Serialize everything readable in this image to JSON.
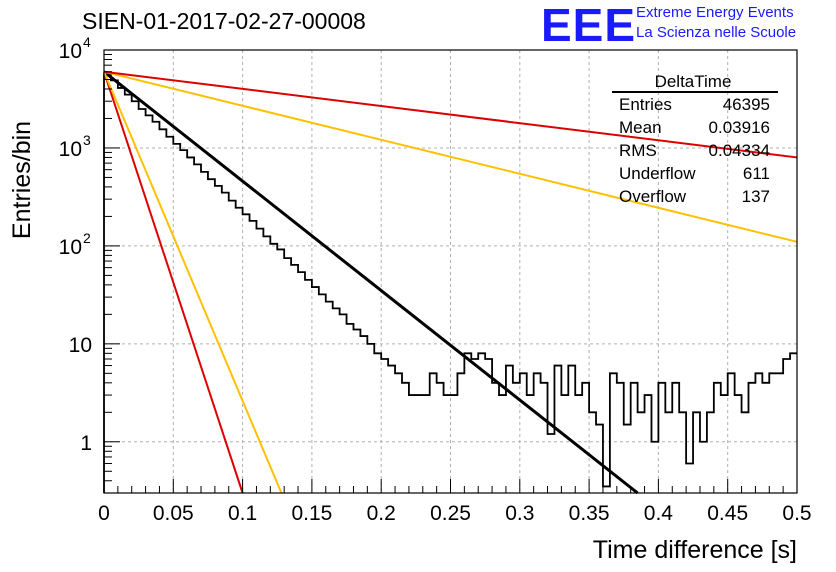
{
  "header": {
    "title": "SIEN-01-2017-02-27-00008",
    "logo_text": "EEE",
    "logo_line1": "Extreme Energy Events",
    "logo_line2": "La Scienza nelle Scuole"
  },
  "stats_box": {
    "name": "DeltaTime",
    "rows": [
      {
        "label": "Entries",
        "value": "46395"
      },
      {
        "label": "Mean",
        "value": "0.03916"
      },
      {
        "label": "RMS",
        "value": "0.04334"
      },
      {
        "label": "Underflow",
        "value": "611"
      },
      {
        "label": "Overflow",
        "value": "137"
      }
    ]
  },
  "colors": {
    "histogram": "#000000",
    "fit": "#000000",
    "red": "#dd0000",
    "orange": "#ffc000",
    "grid": "#aaaaaa",
    "logo": "#1a1aff"
  },
  "chart_data": {
    "type": "line",
    "xlabel": "Time difference [s]",
    "ylabel": "Entries/bin",
    "xlim": [
      0,
      0.5
    ],
    "ylim": [
      0.3,
      10000
    ],
    "yscale": "log",
    "grid": true,
    "legend": "top-right",
    "x_ticks": [
      "0",
      "0.05",
      "0.1",
      "0.15",
      "0.2",
      "0.25",
      "0.3",
      "0.35",
      "0.4",
      "0.45",
      "0.5"
    ],
    "y_ticks": [
      {
        "value": 1,
        "label": "1"
      },
      {
        "value": 10,
        "label": "10"
      },
      {
        "value": 100,
        "label": "10",
        "exp": "2"
      },
      {
        "value": 1000,
        "label": "10",
        "exp": "3"
      },
      {
        "value": 10000,
        "label": "10",
        "exp": "4"
      }
    ],
    "histogram": {
      "bin_width": 0.005,
      "values": [
        5600,
        4900,
        4100,
        3500,
        3000,
        2500,
        2150,
        1850,
        1550,
        1300,
        1100,
        950,
        800,
        680,
        570,
        480,
        410,
        350,
        290,
        245,
        210,
        180,
        150,
        125,
        105,
        92,
        75,
        64,
        54,
        45,
        38,
        32,
        27,
        23,
        20,
        16,
        14,
        12,
        10,
        8,
        7,
        6,
        5,
        4,
        3,
        3,
        3,
        5,
        4,
        3,
        3,
        5,
        8,
        7,
        8,
        7,
        4,
        3,
        6,
        4,
        5,
        3,
        5,
        4,
        1.2,
        6,
        3,
        6,
        3,
        4,
        2,
        1.5,
        0.35,
        5,
        4,
        1.5,
        4,
        2,
        3,
        1,
        4,
        2,
        4,
        2,
        0.6,
        2,
        1,
        2,
        4,
        3,
        5,
        3,
        2,
        4,
        5,
        4,
        5,
        5,
        7,
        8
      ]
    },
    "series": [
      {
        "color": "#000000",
        "x": [
          0,
          0.385
        ],
        "y": [
          6000,
          0.3
        ]
      },
      {
        "color": "#dd0000",
        "x": [
          0,
          0.1
        ],
        "y": [
          6000,
          0.3
        ]
      },
      {
        "color": "#ffc000",
        "x": [
          0,
          0.128
        ],
        "y": [
          6000,
          0.3
        ]
      },
      {
        "color": "#ffc000",
        "x": [
          0,
          0.5
        ],
        "y": [
          6000,
          110
        ]
      },
      {
        "color": "#dd0000",
        "x": [
          0,
          0.5
        ],
        "y": [
          6000,
          800
        ]
      }
    ]
  }
}
